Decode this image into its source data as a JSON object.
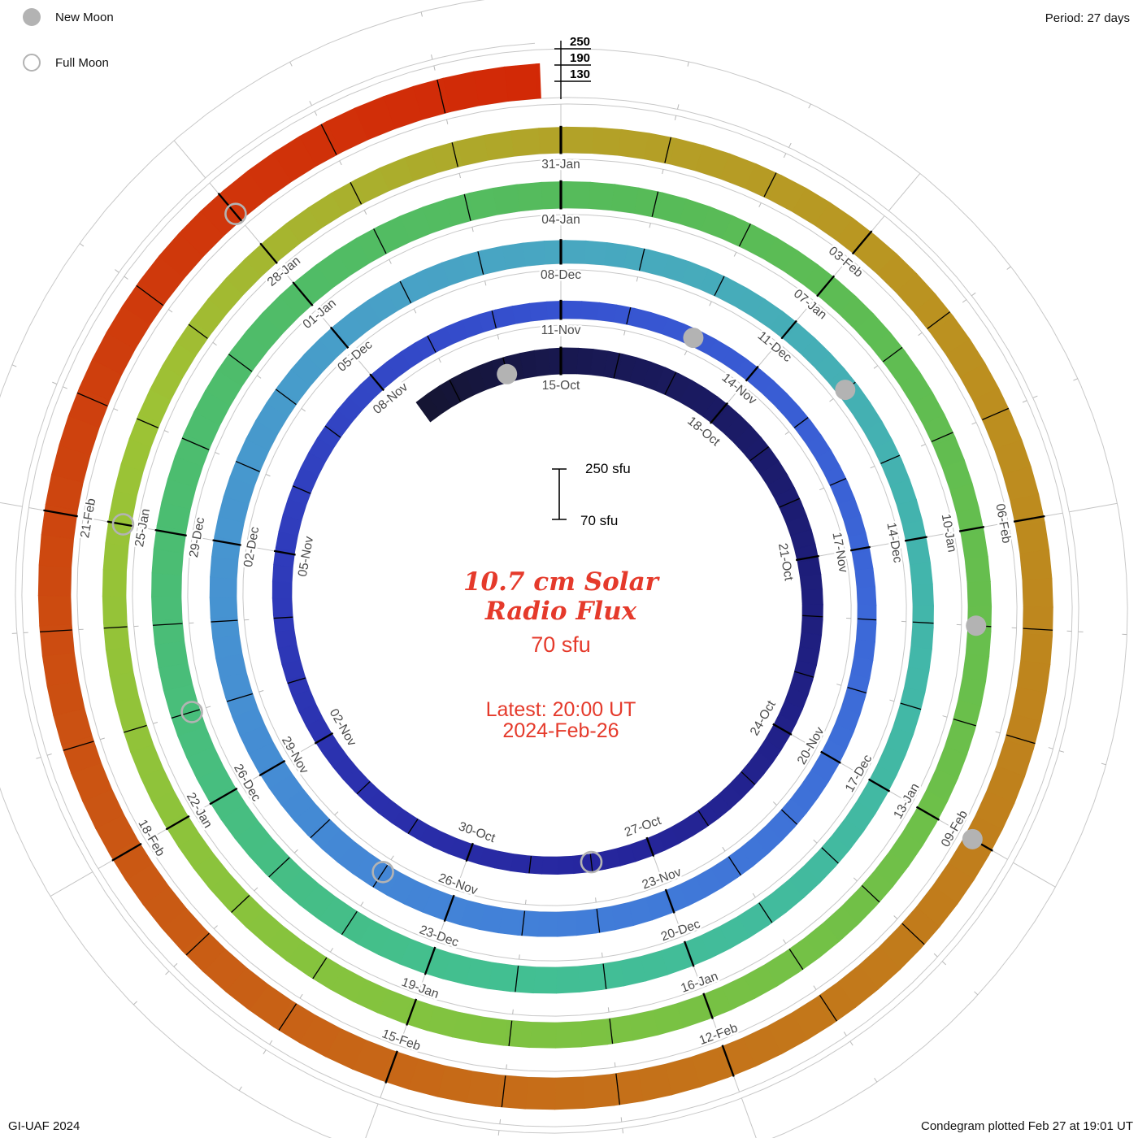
{
  "header": {
    "legend": {
      "new_moon_label": "New Moon",
      "full_moon_label": "Full Moon"
    },
    "period_label": "Period: 27 days"
  },
  "center": {
    "title_line1": "10.7 cm Solar",
    "title_line2": "Radio Flux",
    "baseline_value": "70 sfu",
    "latest_line1": "Latest: 20:00 UT",
    "latest_line2": "2024-Feb-26",
    "scale_top": "250 sfu",
    "scale_bottom": "70 sfu"
  },
  "radial_axis": {
    "labels": [
      "250",
      "190",
      "130"
    ]
  },
  "footer": {
    "credit": "GI-UAF 2024",
    "plotted": "Condegram plotted Feb 27 at 19:01 UT"
  },
  "chart_data": {
    "type": "spiral",
    "description": "Condegram: 10.7 cm solar radio flux plotted as band thickness on a 27-day spiral, clockwise from 12 o'clock, spiraling outward; color encodes date",
    "period_days": 27,
    "flux_min_sfu": 70,
    "flux_max_sfu": 250,
    "start_day_offset": -2.7,
    "end_day_offset": 134.83,
    "day0_date": "15-Oct",
    "latest_reading": "2024-Feb-26 20:00 UT",
    "date_labels": [
      {
        "text": "15-Oct",
        "day": 0
      },
      {
        "text": "18-Oct",
        "day": 3
      },
      {
        "text": "21-Oct",
        "day": 6
      },
      {
        "text": "24-Oct",
        "day": 9
      },
      {
        "text": "27-Oct",
        "day": 12
      },
      {
        "text": "30-Oct",
        "day": 15
      },
      {
        "text": "02-Nov",
        "day": 18
      },
      {
        "text": "05-Nov",
        "day": 21
      },
      {
        "text": "08-Nov",
        "day": 24
      },
      {
        "text": "11-Nov",
        "day": 27
      },
      {
        "text": "14-Nov",
        "day": 30
      },
      {
        "text": "17-Nov",
        "day": 33
      },
      {
        "text": "20-Nov",
        "day": 36
      },
      {
        "text": "23-Nov",
        "day": 39
      },
      {
        "text": "26-Nov",
        "day": 42
      },
      {
        "text": "29-Nov",
        "day": 45
      },
      {
        "text": "02-Dec",
        "day": 48
      },
      {
        "text": "05-Dec",
        "day": 51
      },
      {
        "text": "08-Dec",
        "day": 54
      },
      {
        "text": "11-Dec",
        "day": 57
      },
      {
        "text": "14-Dec",
        "day": 60
      },
      {
        "text": "17-Dec",
        "day": 63
      },
      {
        "text": "20-Dec",
        "day": 66
      },
      {
        "text": "23-Dec",
        "day": 69
      },
      {
        "text": "26-Dec",
        "day": 72
      },
      {
        "text": "29-Dec",
        "day": 75
      },
      {
        "text": "01-Jan",
        "day": 78
      },
      {
        "text": "04-Jan",
        "day": 81
      },
      {
        "text": "07-Jan",
        "day": 84
      },
      {
        "text": "10-Jan",
        "day": 87
      },
      {
        "text": "13-Jan",
        "day": 90
      },
      {
        "text": "16-Jan",
        "day": 93
      },
      {
        "text": "19-Jan",
        "day": 96
      },
      {
        "text": "22-Jan",
        "day": 99
      },
      {
        "text": "25-Jan",
        "day": 102
      },
      {
        "text": "28-Jan",
        "day": 105
      },
      {
        "text": "31-Jan",
        "day": 108
      },
      {
        "text": "03-Feb",
        "day": 111
      },
      {
        "text": "06-Feb",
        "day": 114
      },
      {
        "text": "09-Feb",
        "day": 117
      },
      {
        "text": "12-Feb",
        "day": 120
      },
      {
        "text": "15-Feb",
        "day": 123
      },
      {
        "text": "18-Feb",
        "day": 126
      },
      {
        "text": "21-Feb",
        "day": 129
      }
    ],
    "flux_points_sfu": [
      [
        -3,
        158
      ],
      [
        0,
        166
      ],
      [
        3,
        160
      ],
      [
        6,
        148
      ],
      [
        9,
        141
      ],
      [
        12,
        136
      ],
      [
        15,
        133
      ],
      [
        18,
        138
      ],
      [
        21,
        142
      ],
      [
        24,
        140
      ],
      [
        27,
        135
      ],
      [
        30,
        132
      ],
      [
        33,
        136
      ],
      [
        36,
        146
      ],
      [
        39,
        155
      ],
      [
        42,
        165
      ],
      [
        45,
        170
      ],
      [
        48,
        168
      ],
      [
        51,
        162
      ],
      [
        54,
        155
      ],
      [
        57,
        148
      ],
      [
        60,
        145
      ],
      [
        63,
        151
      ],
      [
        66,
        161
      ],
      [
        69,
        170
      ],
      [
        72,
        178
      ],
      [
        75,
        180
      ],
      [
        78,
        175
      ],
      [
        81,
        168
      ],
      [
        84,
        160
      ],
      [
        87,
        155
      ],
      [
        90,
        158
      ],
      [
        93,
        162
      ],
      [
        96,
        165
      ],
      [
        99,
        160
      ],
      [
        102,
        155
      ],
      [
        105,
        158
      ],
      [
        108,
        165
      ],
      [
        111,
        172
      ],
      [
        114,
        178
      ],
      [
        117,
        182
      ],
      [
        120,
        185
      ],
      [
        123,
        188
      ],
      [
        126,
        186
      ],
      [
        129,
        190
      ],
      [
        132,
        195
      ],
      [
        135,
        198
      ]
    ],
    "colormap_stops": [
      [
        -3,
        "#14142e"
      ],
      [
        0,
        "#18184f"
      ],
      [
        6,
        "#1d1d78"
      ],
      [
        13,
        "#26269e"
      ],
      [
        20,
        "#2e38b8"
      ],
      [
        27,
        "#3652d0"
      ],
      [
        34,
        "#3c68d8"
      ],
      [
        41,
        "#4280d8"
      ],
      [
        48,
        "#4795d0"
      ],
      [
        54,
        "#48a7c1"
      ],
      [
        61,
        "#42b6aa"
      ],
      [
        68,
        "#42bf92"
      ],
      [
        75,
        "#4bbd72"
      ],
      [
        82,
        "#57bb58"
      ],
      [
        89,
        "#6abf4b"
      ],
      [
        96,
        "#82c33f"
      ],
      [
        103,
        "#9cc335"
      ],
      [
        108,
        "#b2a328"
      ],
      [
        112,
        "#bb9220"
      ],
      [
        117,
        "#c07f1c"
      ],
      [
        122,
        "#c66c18"
      ],
      [
        127,
        "#cb5212"
      ],
      [
        131,
        "#cf3a0c"
      ],
      [
        135,
        "#d22706"
      ]
    ],
    "moons": {
      "new_moon_days": [
        -1,
        29,
        58,
        88,
        117
      ],
      "full_moon_days": [
        13,
        43,
        73,
        102,
        132
      ]
    },
    "marker_color": "#b3b3b3"
  }
}
